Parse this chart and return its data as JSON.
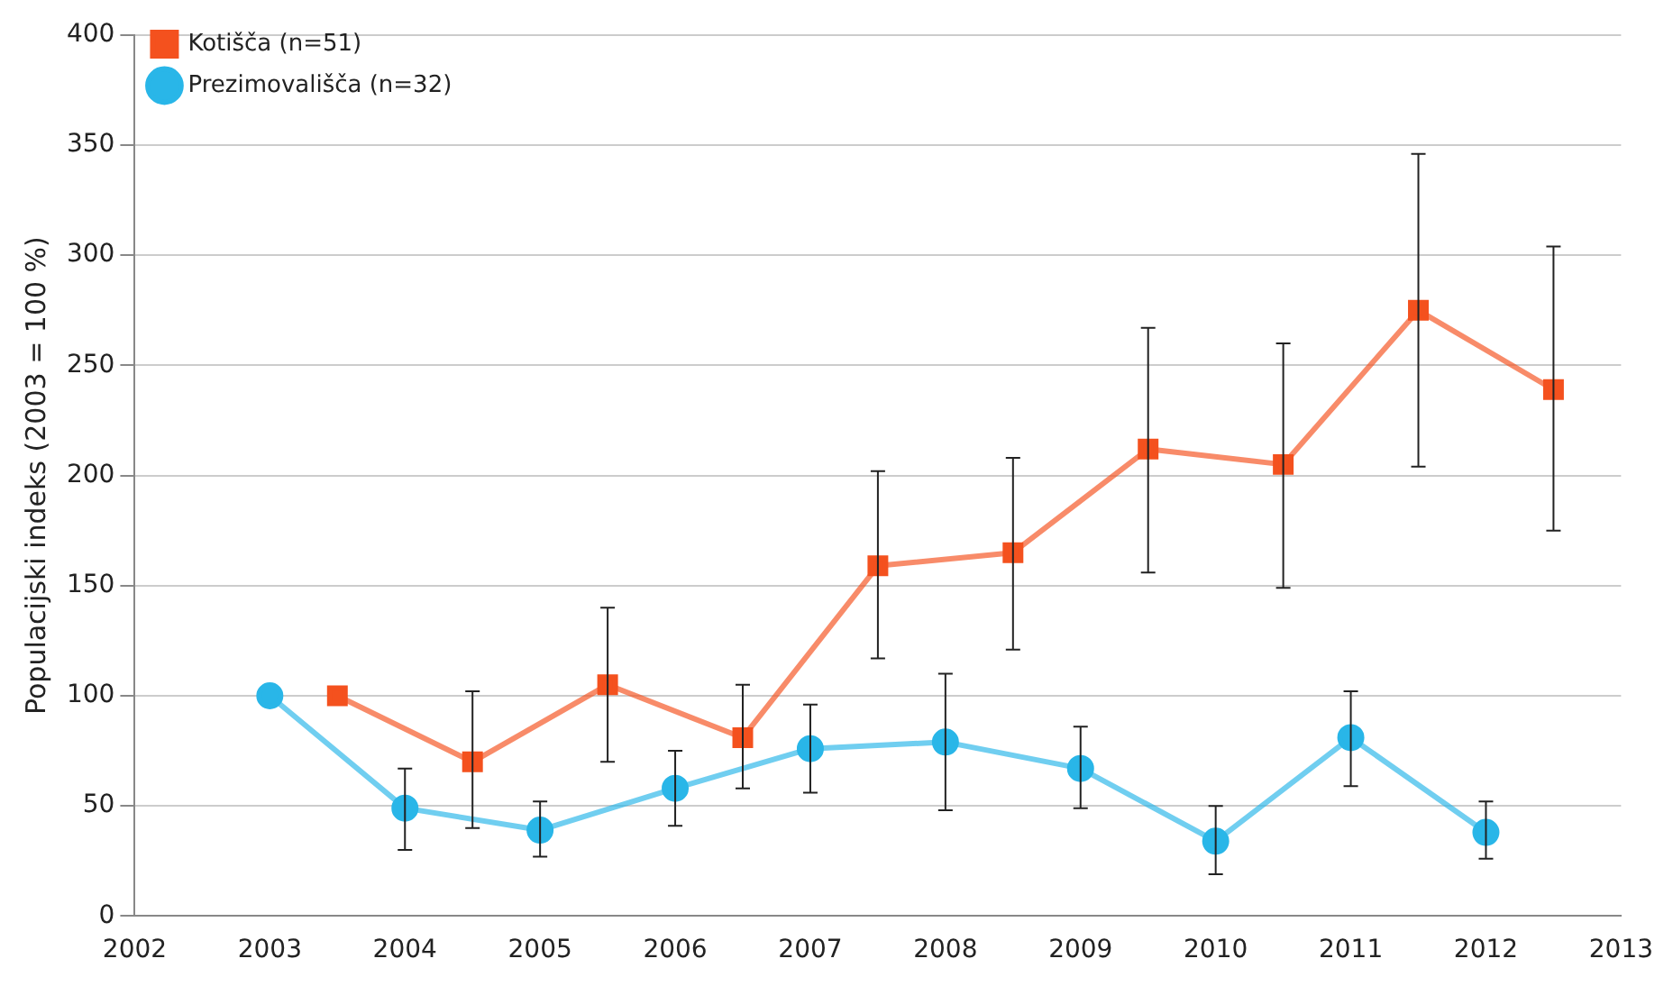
{
  "chart_data": {
    "type": "line",
    "ylabel": "Populacijski indeks (2003 = 100 %)",
    "xlim": [
      2002,
      2013
    ],
    "xticks": [
      2002,
      2003,
      2004,
      2005,
      2006,
      2007,
      2008,
      2009,
      2010,
      2011,
      2012,
      2013
    ],
    "ylim": [
      0,
      400
    ],
    "yticks": [
      0,
      50,
      100,
      150,
      200,
      250,
      300,
      350,
      400
    ],
    "grid": "y",
    "legend": "top left",
    "series": [
      {
        "name": "Kotišča (n=51)",
        "color": "#f4511e",
        "marker": "square",
        "x": [
          2003.5,
          2004.5,
          2005.5,
          2006.5,
          2007.5,
          2008.5,
          2009.5,
          2010.5,
          2011.5,
          2012.5
        ],
        "values": [
          100,
          70,
          105,
          81,
          159,
          165,
          212,
          205,
          275,
          239
        ],
        "errors": [
          null,
          [
            40,
            102
          ],
          [
            70,
            140
          ],
          [
            58,
            105
          ],
          [
            117,
            202
          ],
          [
            121,
            208
          ],
          [
            156,
            267
          ],
          [
            149,
            260
          ],
          [
            204,
            346
          ],
          [
            175,
            304
          ]
        ]
      },
      {
        "name": "Prezimovališča (n=32)",
        "color": "#29b6e8",
        "marker": "circle",
        "x": [
          2003,
          2004,
          2005,
          2006,
          2007,
          2008,
          2009,
          2010,
          2011,
          2012
        ],
        "values": [
          100,
          49,
          39,
          58,
          76,
          79,
          67,
          34,
          81,
          38
        ],
        "errors": [
          null,
          [
            30,
            67
          ],
          [
            27,
            52
          ],
          [
            41,
            75
          ],
          [
            56,
            96
          ],
          [
            48,
            110
          ],
          [
            49,
            86
          ],
          [
            19,
            50
          ],
          [
            59,
            102
          ],
          [
            26,
            52
          ]
        ]
      }
    ]
  }
}
